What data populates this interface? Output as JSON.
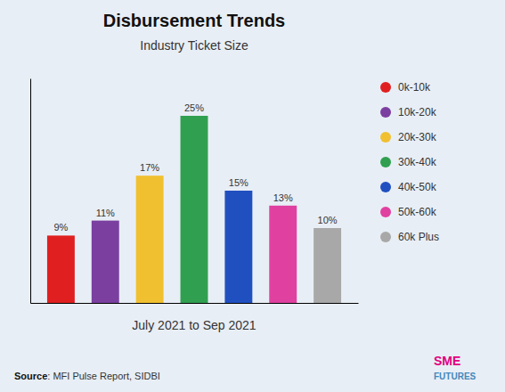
{
  "chart_data": {
    "type": "bar",
    "title": "Disbursement Trends",
    "subtitle": "Industry Ticket Size",
    "xlabel": "July 2021 to Sep 2021",
    "categories": [
      "0k-10k",
      "10k-20k",
      "20k-30k",
      "30k-40k",
      "40k-50k",
      "50k-60k",
      "60k Plus"
    ],
    "values": [
      9,
      11,
      17,
      25,
      15,
      13,
      10
    ],
    "value_labels": [
      "9%",
      "11%",
      "17%",
      "25%",
      "15%",
      "13%",
      "10%"
    ],
    "colors": [
      "#e02020",
      "#7b3fa0",
      "#f0c030",
      "#30a050",
      "#2050c0",
      "#e040a0",
      "#a8a8a8"
    ],
    "ylim": [
      0,
      30
    ],
    "data_labels": true,
    "tick_labels": false,
    "legend": "right",
    "annotations": [
      "Source",
      ": MFI Pulse Report, SIDBI",
      "SME",
      "FUTURES"
    ]
  }
}
